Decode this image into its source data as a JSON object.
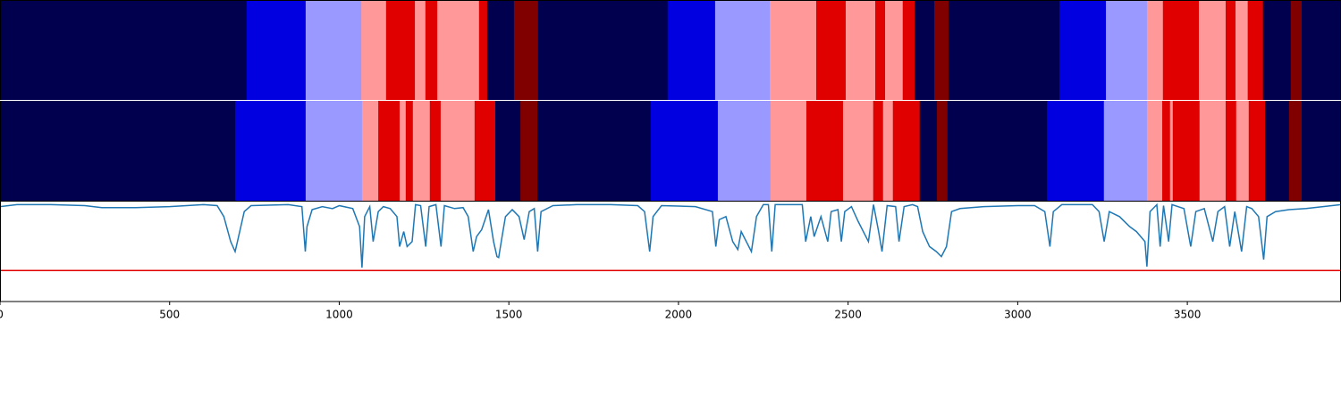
{
  "chart_data": {
    "type": "segmentation",
    "xlim": [
      0,
      3953
    ],
    "xticks": [
      0,
      500,
      1000,
      1500,
      2000,
      2500,
      3000,
      3500
    ],
    "rows": [
      {
        "edges": [
          0,
          727,
          901,
          1065,
          1138,
          1223,
          1254,
          1289,
          1412,
          1436,
          1515,
          1586,
          1968,
          2108,
          2269,
          2406,
          2493,
          2580,
          2609,
          2661,
          2696,
          2754,
          2796,
          3123,
          3260,
          3381,
          3428,
          3534,
          3613,
          3642,
          3678,
          3723,
          3805,
          3837,
          3953
        ],
        "colors": [
          "#00004f",
          "#0000e0",
          "#9999ff",
          "#ff9999",
          "#e00000",
          "#ff9999",
          "#e00000",
          "#ff9999",
          "#e00000",
          "#00004f",
          "#800000",
          "#00004f",
          "#0000e0",
          "#9999ff",
          "#ff9999",
          "#e00000",
          "#ff9999",
          "#e00000",
          "#ff9999",
          "#e00000",
          "#00004f",
          "#800000",
          "#00004f",
          "#0000e0",
          "#9999ff",
          "#ff9999",
          "#e00000",
          "#ff9999",
          "#e00000",
          "#ff9999",
          "#e00000",
          "#00004f",
          "#800000",
          "#00004f"
        ]
      },
      {
        "edges": [
          0,
          693,
          901,
          1067,
          1115,
          1178,
          1196,
          1217,
          1267,
          1299,
          1399,
          1460,
          1534,
          1584,
          1918,
          2116,
          2271,
          2377,
          2485,
          2574,
          2603,
          2632,
          2711,
          2762,
          2793,
          3086,
          3254,
          3381,
          3426,
          3449,
          3457,
          3536,
          3613,
          3644,
          3681,
          3729,
          3800,
          3837,
          3953
        ],
        "colors": [
          "#00004f",
          "#0000e0",
          "#9999ff",
          "#ff9999",
          "#e00000",
          "#ff9999",
          "#e00000",
          "#ff9999",
          "#e00000",
          "#ff9999",
          "#e00000",
          "#00004f",
          "#800000",
          "#00004f",
          "#0000e0",
          "#9999ff",
          "#ff9999",
          "#e00000",
          "#ff9999",
          "#e00000",
          "#ff9999",
          "#e00000",
          "#00004f",
          "#800000",
          "#00004f",
          "#0000e0",
          "#9999ff",
          "#ff9999",
          "#e00000",
          "#ff9999",
          "#e00000",
          "#ff9999",
          "#e00000",
          "#ff9999",
          "#e00000",
          "#00004f",
          "#800000",
          "#00004f"
        ]
      }
    ],
    "line": {
      "color": "#1f77b4",
      "ylim": [
        0,
        1
      ],
      "threshold": 0.31,
      "threshold_color": "#e00000",
      "x": [
        0,
        50,
        150,
        250,
        300,
        400,
        500,
        600,
        640,
        660,
        680,
        693,
        700,
        720,
        740,
        850,
        890,
        900,
        905,
        920,
        950,
        980,
        1000,
        1040,
        1060,
        1067,
        1075,
        1090,
        1100,
        1115,
        1130,
        1150,
        1170,
        1178,
        1190,
        1200,
        1215,
        1225,
        1240,
        1255,
        1265,
        1285,
        1300,
        1310,
        1340,
        1365,
        1380,
        1395,
        1405,
        1420,
        1440,
        1455,
        1465,
        1470,
        1480,
        1490,
        1510,
        1530,
        1545,
        1560,
        1575,
        1585,
        1595,
        1630,
        1700,
        1800,
        1880,
        1900,
        1915,
        1925,
        1950,
        2050,
        2100,
        2110,
        2120,
        2140,
        2160,
        2175,
        2185,
        2200,
        2215,
        2230,
        2250,
        2265,
        2275,
        2285,
        2365,
        2375,
        2390,
        2400,
        2420,
        2440,
        2450,
        2470,
        2480,
        2490,
        2510,
        2530,
        2560,
        2575,
        2590,
        2600,
        2615,
        2640,
        2650,
        2665,
        2690,
        2705,
        2720,
        2740,
        2760,
        2775,
        2790,
        2805,
        2830,
        2900,
        3000,
        3050,
        3080,
        3095,
        3105,
        3130,
        3220,
        3240,
        3255,
        3270,
        3300,
        3330,
        3350,
        3375,
        3381,
        3390,
        3410,
        3420,
        3430,
        3445,
        3455,
        3490,
        3510,
        3525,
        3550,
        3575,
        3590,
        3610,
        3625,
        3640,
        3660,
        3675,
        3690,
        3710,
        3725,
        3735,
        3760,
        3800,
        3850,
        3900,
        3953
      ],
      "values": [
        0.95,
        0.97,
        0.97,
        0.96,
        0.94,
        0.94,
        0.95,
        0.97,
        0.96,
        0.85,
        0.6,
        0.5,
        0.6,
        0.9,
        0.96,
        0.97,
        0.95,
        0.5,
        0.75,
        0.92,
        0.95,
        0.93,
        0.96,
        0.93,
        0.75,
        0.34,
        0.85,
        0.95,
        0.6,
        0.9,
        0.95,
        0.93,
        0.85,
        0.55,
        0.7,
        0.55,
        0.6,
        0.97,
        0.96,
        0.55,
        0.95,
        0.97,
        0.55,
        0.96,
        0.93,
        0.94,
        0.85,
        0.5,
        0.65,
        0.72,
        0.92,
        0.6,
        0.45,
        0.44,
        0.65,
        0.85,
        0.92,
        0.85,
        0.62,
        0.9,
        0.93,
        0.5,
        0.9,
        0.96,
        0.97,
        0.97,
        0.96,
        0.9,
        0.5,
        0.85,
        0.96,
        0.95,
        0.9,
        0.55,
        0.82,
        0.85,
        0.6,
        0.52,
        0.7,
        0.6,
        0.5,
        0.85,
        0.97,
        0.97,
        0.5,
        0.97,
        0.97,
        0.6,
        0.85,
        0.65,
        0.85,
        0.6,
        0.9,
        0.92,
        0.6,
        0.9,
        0.95,
        0.8,
        0.6,
        0.97,
        0.7,
        0.5,
        0.96,
        0.95,
        0.6,
        0.95,
        0.97,
        0.95,
        0.7,
        0.55,
        0.5,
        0.45,
        0.55,
        0.9,
        0.93,
        0.95,
        0.96,
        0.96,
        0.9,
        0.55,
        0.9,
        0.97,
        0.97,
        0.9,
        0.6,
        0.9,
        0.85,
        0.75,
        0.7,
        0.6,
        0.35,
        0.9,
        0.97,
        0.55,
        0.96,
        0.6,
        0.97,
        0.93,
        0.55,
        0.9,
        0.93,
        0.6,
        0.9,
        0.95,
        0.55,
        0.9,
        0.5,
        0.95,
        0.93,
        0.85,
        0.42,
        0.85,
        0.9,
        0.92,
        0.93,
        0.95,
        0.97
      ]
    }
  }
}
